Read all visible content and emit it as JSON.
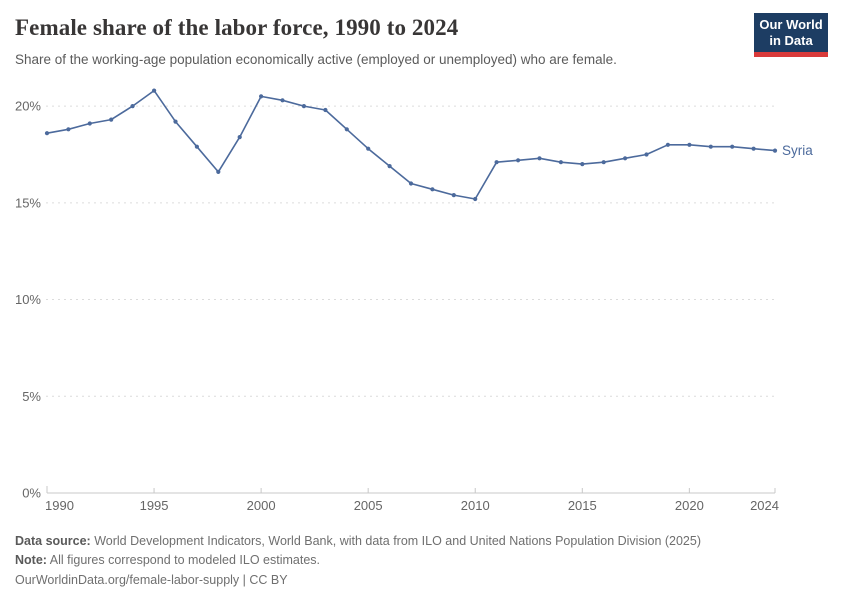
{
  "header": {
    "title": "Female share of the labor force, 1990 to 2024",
    "subtitle": "Share of the working-age population economically active (employed or unemployed) who are female.",
    "logo": {
      "line1": "Our World",
      "line2": "in Data"
    }
  },
  "chart_data": {
    "type": "line",
    "title": "Female share of the labor force, 1990 to 2024",
    "xlabel": "",
    "ylabel": "",
    "xlim": [
      1990,
      2024
    ],
    "ylim": [
      0,
      21.5
    ],
    "grid": "horizontal-dashed",
    "legend_position": "end-of-line-label",
    "xticks": [
      1990,
      1995,
      2000,
      2005,
      2010,
      2015,
      2020,
      2024
    ],
    "yticks": [
      0,
      5,
      10,
      15,
      20
    ],
    "ytick_suffix": "%",
    "series": [
      {
        "name": "Syria",
        "color": "#4c6a9c",
        "x": [
          1990,
          1991,
          1992,
          1993,
          1994,
          1995,
          1996,
          1997,
          1998,
          1999,
          2000,
          2001,
          2002,
          2003,
          2004,
          2005,
          2006,
          2007,
          2008,
          2009,
          2010,
          2011,
          2012,
          2013,
          2014,
          2015,
          2016,
          2017,
          2018,
          2019,
          2020,
          2021,
          2022,
          2023,
          2024
        ],
        "values": [
          18.6,
          18.8,
          19.1,
          19.3,
          20.0,
          20.8,
          19.2,
          17.9,
          16.6,
          18.4,
          20.5,
          20.3,
          20.0,
          19.8,
          18.8,
          17.8,
          16.9,
          16.0,
          15.7,
          15.4,
          15.2,
          17.1,
          17.2,
          17.3,
          17.1,
          17.0,
          17.1,
          17.3,
          17.5,
          18.0,
          18.0,
          17.9,
          17.9,
          17.8,
          17.7
        ]
      }
    ]
  },
  "footer": {
    "datasource_label": "Data source:",
    "datasource_text": "World Development Indicators, World Bank, with data from ILO and United Nations Population Division (2025)",
    "note_label": "Note:",
    "note_text": "All figures correspond to modeled ILO estimates.",
    "url_text": "OurWorldinData.org/female-labor-supply | CC BY"
  },
  "colors": {
    "line": "#4c6a9c",
    "gridline": "#dcdcdc",
    "axis": "#c8c8c8",
    "tick_label": "#666666",
    "logo_navy": "#1d3d63",
    "logo_red": "#d93a3a"
  }
}
